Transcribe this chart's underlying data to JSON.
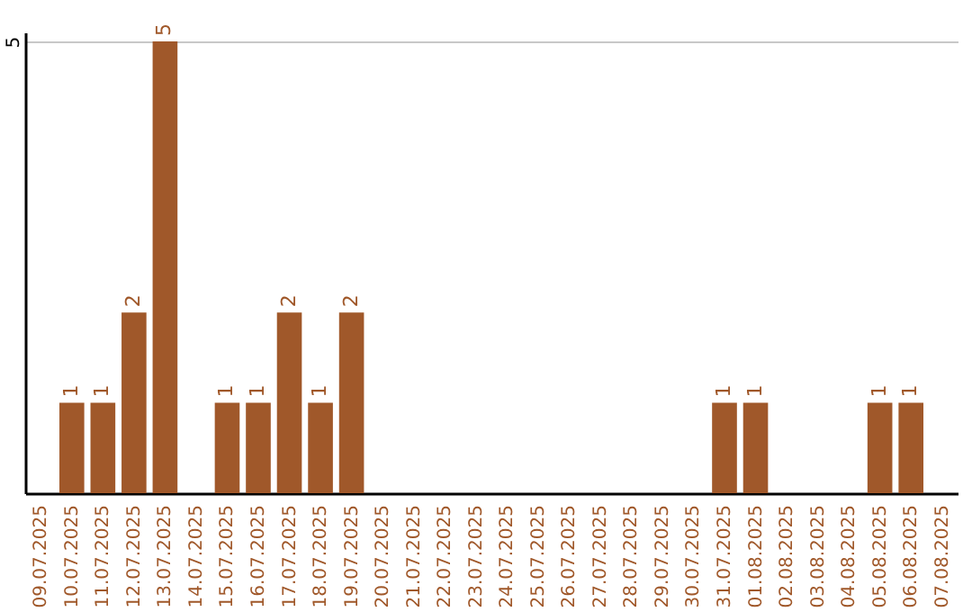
{
  "chart_data": {
    "type": "bar",
    "categories": [
      "09.07.2025",
      "10.07.2025",
      "11.07.2025",
      "12.07.2025",
      "13.07.2025",
      "14.07.2025",
      "15.07.2025",
      "16.07.2025",
      "17.07.2025",
      "18.07.2025",
      "19.07.2025",
      "20.07.2025",
      "21.07.2025",
      "22.07.2025",
      "23.07.2025",
      "24.07.2025",
      "25.07.2025",
      "26.07.2025",
      "27.07.2025",
      "28.07.2025",
      "29.07.2025",
      "30.07.2025",
      "31.07.2025",
      "01.08.2025",
      "02.08.2025",
      "03.08.2025",
      "04.08.2025",
      "05.08.2025",
      "06.08.2025",
      "07.08.2025"
    ],
    "values": [
      0,
      1,
      1,
      2,
      5,
      0,
      1,
      1,
      2,
      1,
      2,
      0,
      0,
      0,
      0,
      0,
      0,
      0,
      0,
      0,
      0,
      0,
      1,
      1,
      0,
      0,
      0,
      1,
      1,
      0
    ],
    "value_labels": [
      null,
      "1",
      "1",
      "2",
      "5",
      null,
      "1",
      "1",
      "2",
      "1",
      "2",
      null,
      null,
      null,
      null,
      null,
      null,
      null,
      null,
      null,
      null,
      null,
      "1",
      "1",
      null,
      null,
      null,
      "1",
      "1",
      null
    ],
    "color": "#a0582a",
    "ylim": [
      0,
      5.1
    ],
    "yticks": [
      5
    ],
    "grid": "y"
  }
}
